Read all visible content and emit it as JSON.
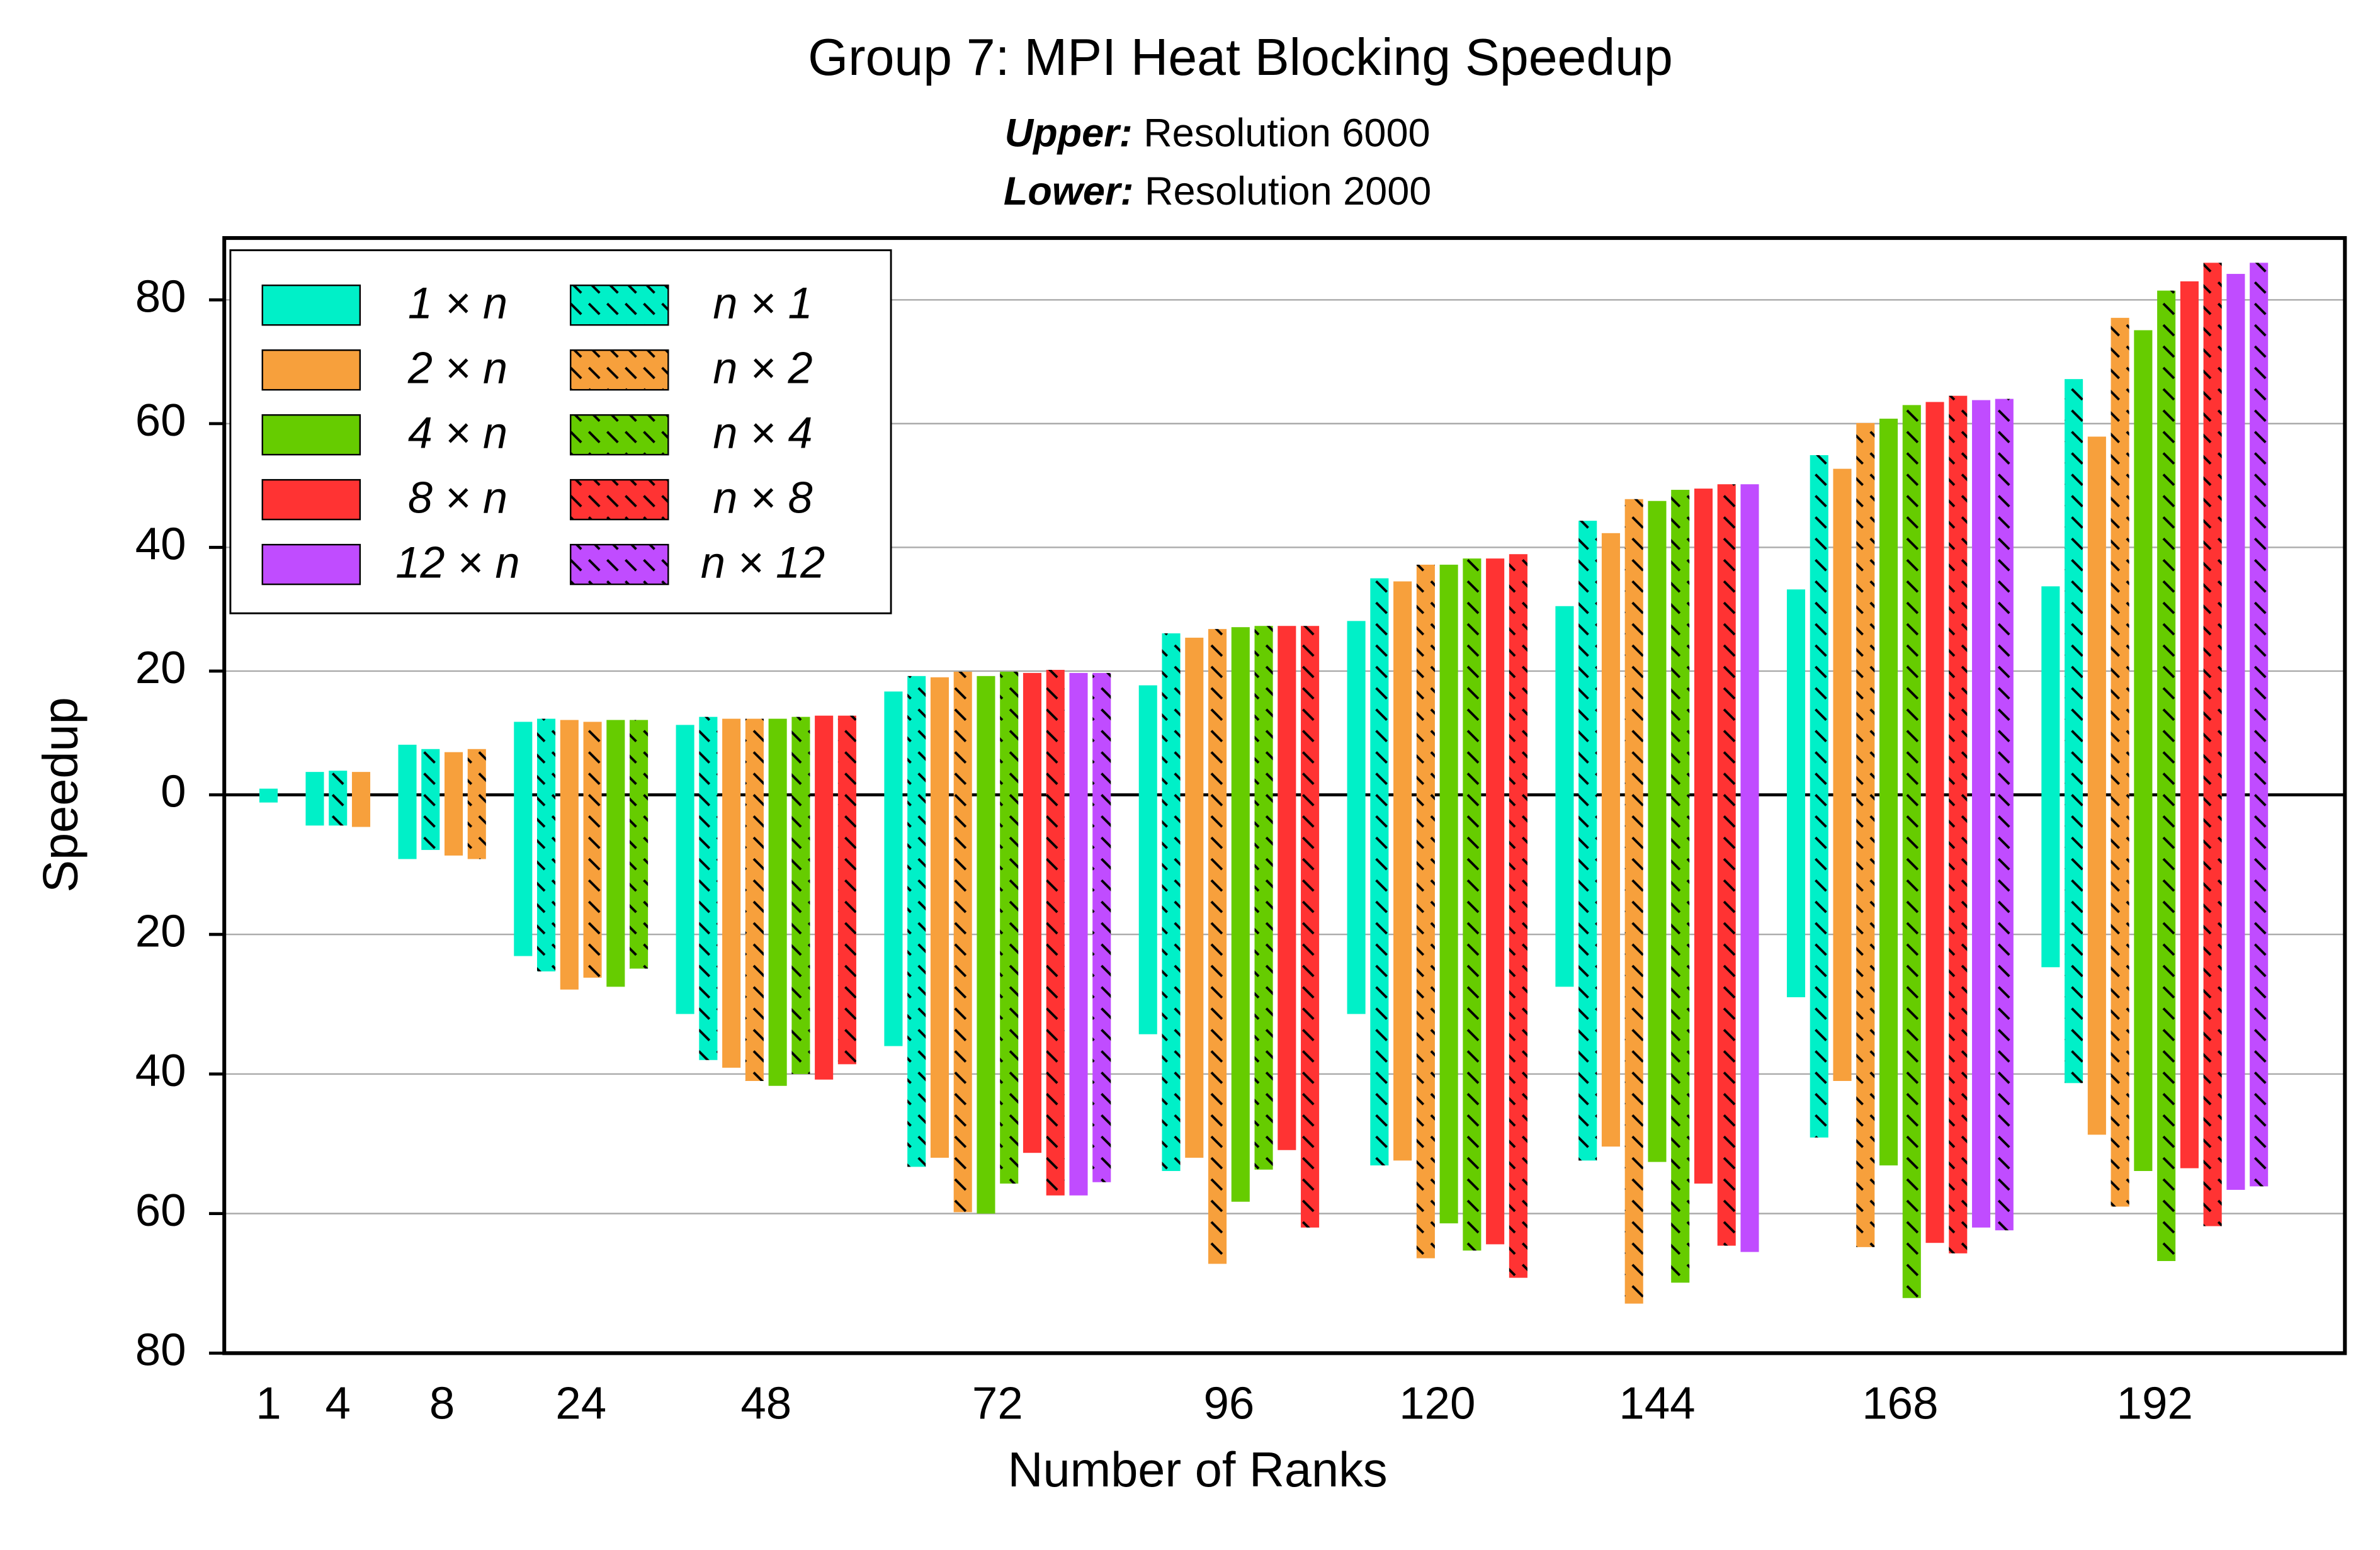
{
  "chart_data": {
    "type": "mirrored-bar",
    "title": "Group 7: MPI Heat Blocking Speedup",
    "annotations": [
      {
        "label": "Upper:",
        "text": "Resolution 6000"
      },
      {
        "label": "Lower:",
        "text": "Resolution 2000"
      }
    ],
    "x_label": "Number of Ranks",
    "y_label": "Speedup",
    "categories": [
      "1",
      "4",
      "8",
      "24",
      "48",
      "72",
      "96",
      "120",
      "144",
      "168",
      "192"
    ],
    "ylim": [
      0,
      90
    ],
    "yticks": [
      0,
      20,
      40,
      60,
      80
    ],
    "y2lim": [
      0,
      80
    ],
    "y2ticks": [
      20,
      40,
      60,
      80
    ],
    "grid": true,
    "legend": "upper-left",
    "series": [
      {
        "name": "1 × n",
        "color": "#00f0c8",
        "hatch": false,
        "values": [
          1,
          3.7,
          8.1,
          11.8,
          11.3,
          16.7,
          17.7,
          28.1,
          30.5,
          33.2,
          33.7
        ],
        "lower_values": [
          1.1,
          4.4,
          9.2,
          23.1,
          31.4,
          36.0,
          34.3,
          31.4,
          27.5,
          29.0,
          24.7
        ]
      },
      {
        "name": "n × 1",
        "color": "#00f0c8",
        "hatch": true,
        "values": [
          null,
          3.9,
          7.4,
          12.3,
          12.6,
          19.2,
          26.1,
          35.0,
          44.3,
          54.9,
          67.2
        ],
        "lower_values": [
          null,
          4.4,
          7.9,
          25.3,
          38.0,
          53.3,
          53.9,
          53.1,
          52.4,
          49.1,
          41.3
        ]
      },
      {
        "name": "2 × n",
        "color": "#f7a03c",
        "hatch": false,
        "values": [
          null,
          3.7,
          6.9,
          12.1,
          12.3,
          19.0,
          25.4,
          34.5,
          42.3,
          52.7,
          57.9
        ],
        "lower_values": [
          null,
          4.6,
          8.7,
          27.9,
          39.1,
          52.0,
          52.0,
          52.4,
          50.4,
          41.0,
          48.7
        ]
      },
      {
        "name": "n × 2",
        "color": "#f7a03c",
        "hatch": true,
        "values": [
          null,
          null,
          7.4,
          11.8,
          12.3,
          19.9,
          26.8,
          37.2,
          47.8,
          60.1,
          77.1
        ],
        "lower_values": [
          null,
          null,
          9.2,
          26.2,
          41.0,
          59.8,
          67.2,
          66.4,
          72.9,
          64.8,
          59.0
        ]
      },
      {
        "name": "4 × n",
        "color": "#66cc00",
        "hatch": false,
        "values": [
          null,
          null,
          null,
          12.1,
          12.3,
          19.2,
          27.1,
          37.2,
          47.5,
          60.8,
          75.1
        ],
        "lower_values": [
          null,
          null,
          null,
          27.5,
          41.7,
          60.0,
          58.3,
          61.4,
          52.6,
          53.1,
          53.9
        ]
      },
      {
        "name": "n × 4",
        "color": "#66cc00",
        "hatch": true,
        "values": [
          null,
          null,
          null,
          12.1,
          12.6,
          19.9,
          27.3,
          38.2,
          49.3,
          63.0,
          81.5
        ],
        "lower_values": [
          null,
          null,
          null,
          24.9,
          40.0,
          55.7,
          53.7,
          65.3,
          69.9,
          72.1,
          66.8
        ]
      },
      {
        "name": "8 × n",
        "color": "#ff3333",
        "hatch": false,
        "values": [
          null,
          null,
          null,
          null,
          12.8,
          19.7,
          27.3,
          38.2,
          49.5,
          63.5,
          83.0
        ],
        "lower_values": [
          null,
          null,
          null,
          null,
          40.8,
          51.3,
          50.9,
          64.4,
          55.7,
          64.2,
          53.5
        ]
      },
      {
        "name": "n × 8",
        "color": "#ff3333",
        "hatch": true,
        "values": [
          null,
          null,
          null,
          null,
          12.8,
          20.2,
          27.3,
          38.9,
          50.2,
          64.5,
          86.0
        ],
        "lower_values": [
          null,
          null,
          null,
          null,
          38.6,
          57.4,
          62.0,
          69.2,
          64.6,
          65.7,
          61.8
        ]
      },
      {
        "name": "12 × n",
        "color": "#c04cff",
        "hatch": false,
        "values": [
          null,
          null,
          null,
          null,
          null,
          19.7,
          null,
          null,
          50.2,
          63.8,
          84.2
        ],
        "lower_values": [
          null,
          null,
          null,
          null,
          null,
          57.4,
          null,
          null,
          65.5,
          62.0,
          56.6
        ]
      },
      {
        "name": "n × 12",
        "color": "#c04cff",
        "hatch": true,
        "values": [
          null,
          null,
          null,
          null,
          null,
          19.7,
          null,
          null,
          null,
          64.0,
          86.0
        ],
        "lower_values": [
          null,
          null,
          null,
          null,
          null,
          55.5,
          null,
          null,
          null,
          62.4,
          56.1
        ]
      }
    ]
  }
}
